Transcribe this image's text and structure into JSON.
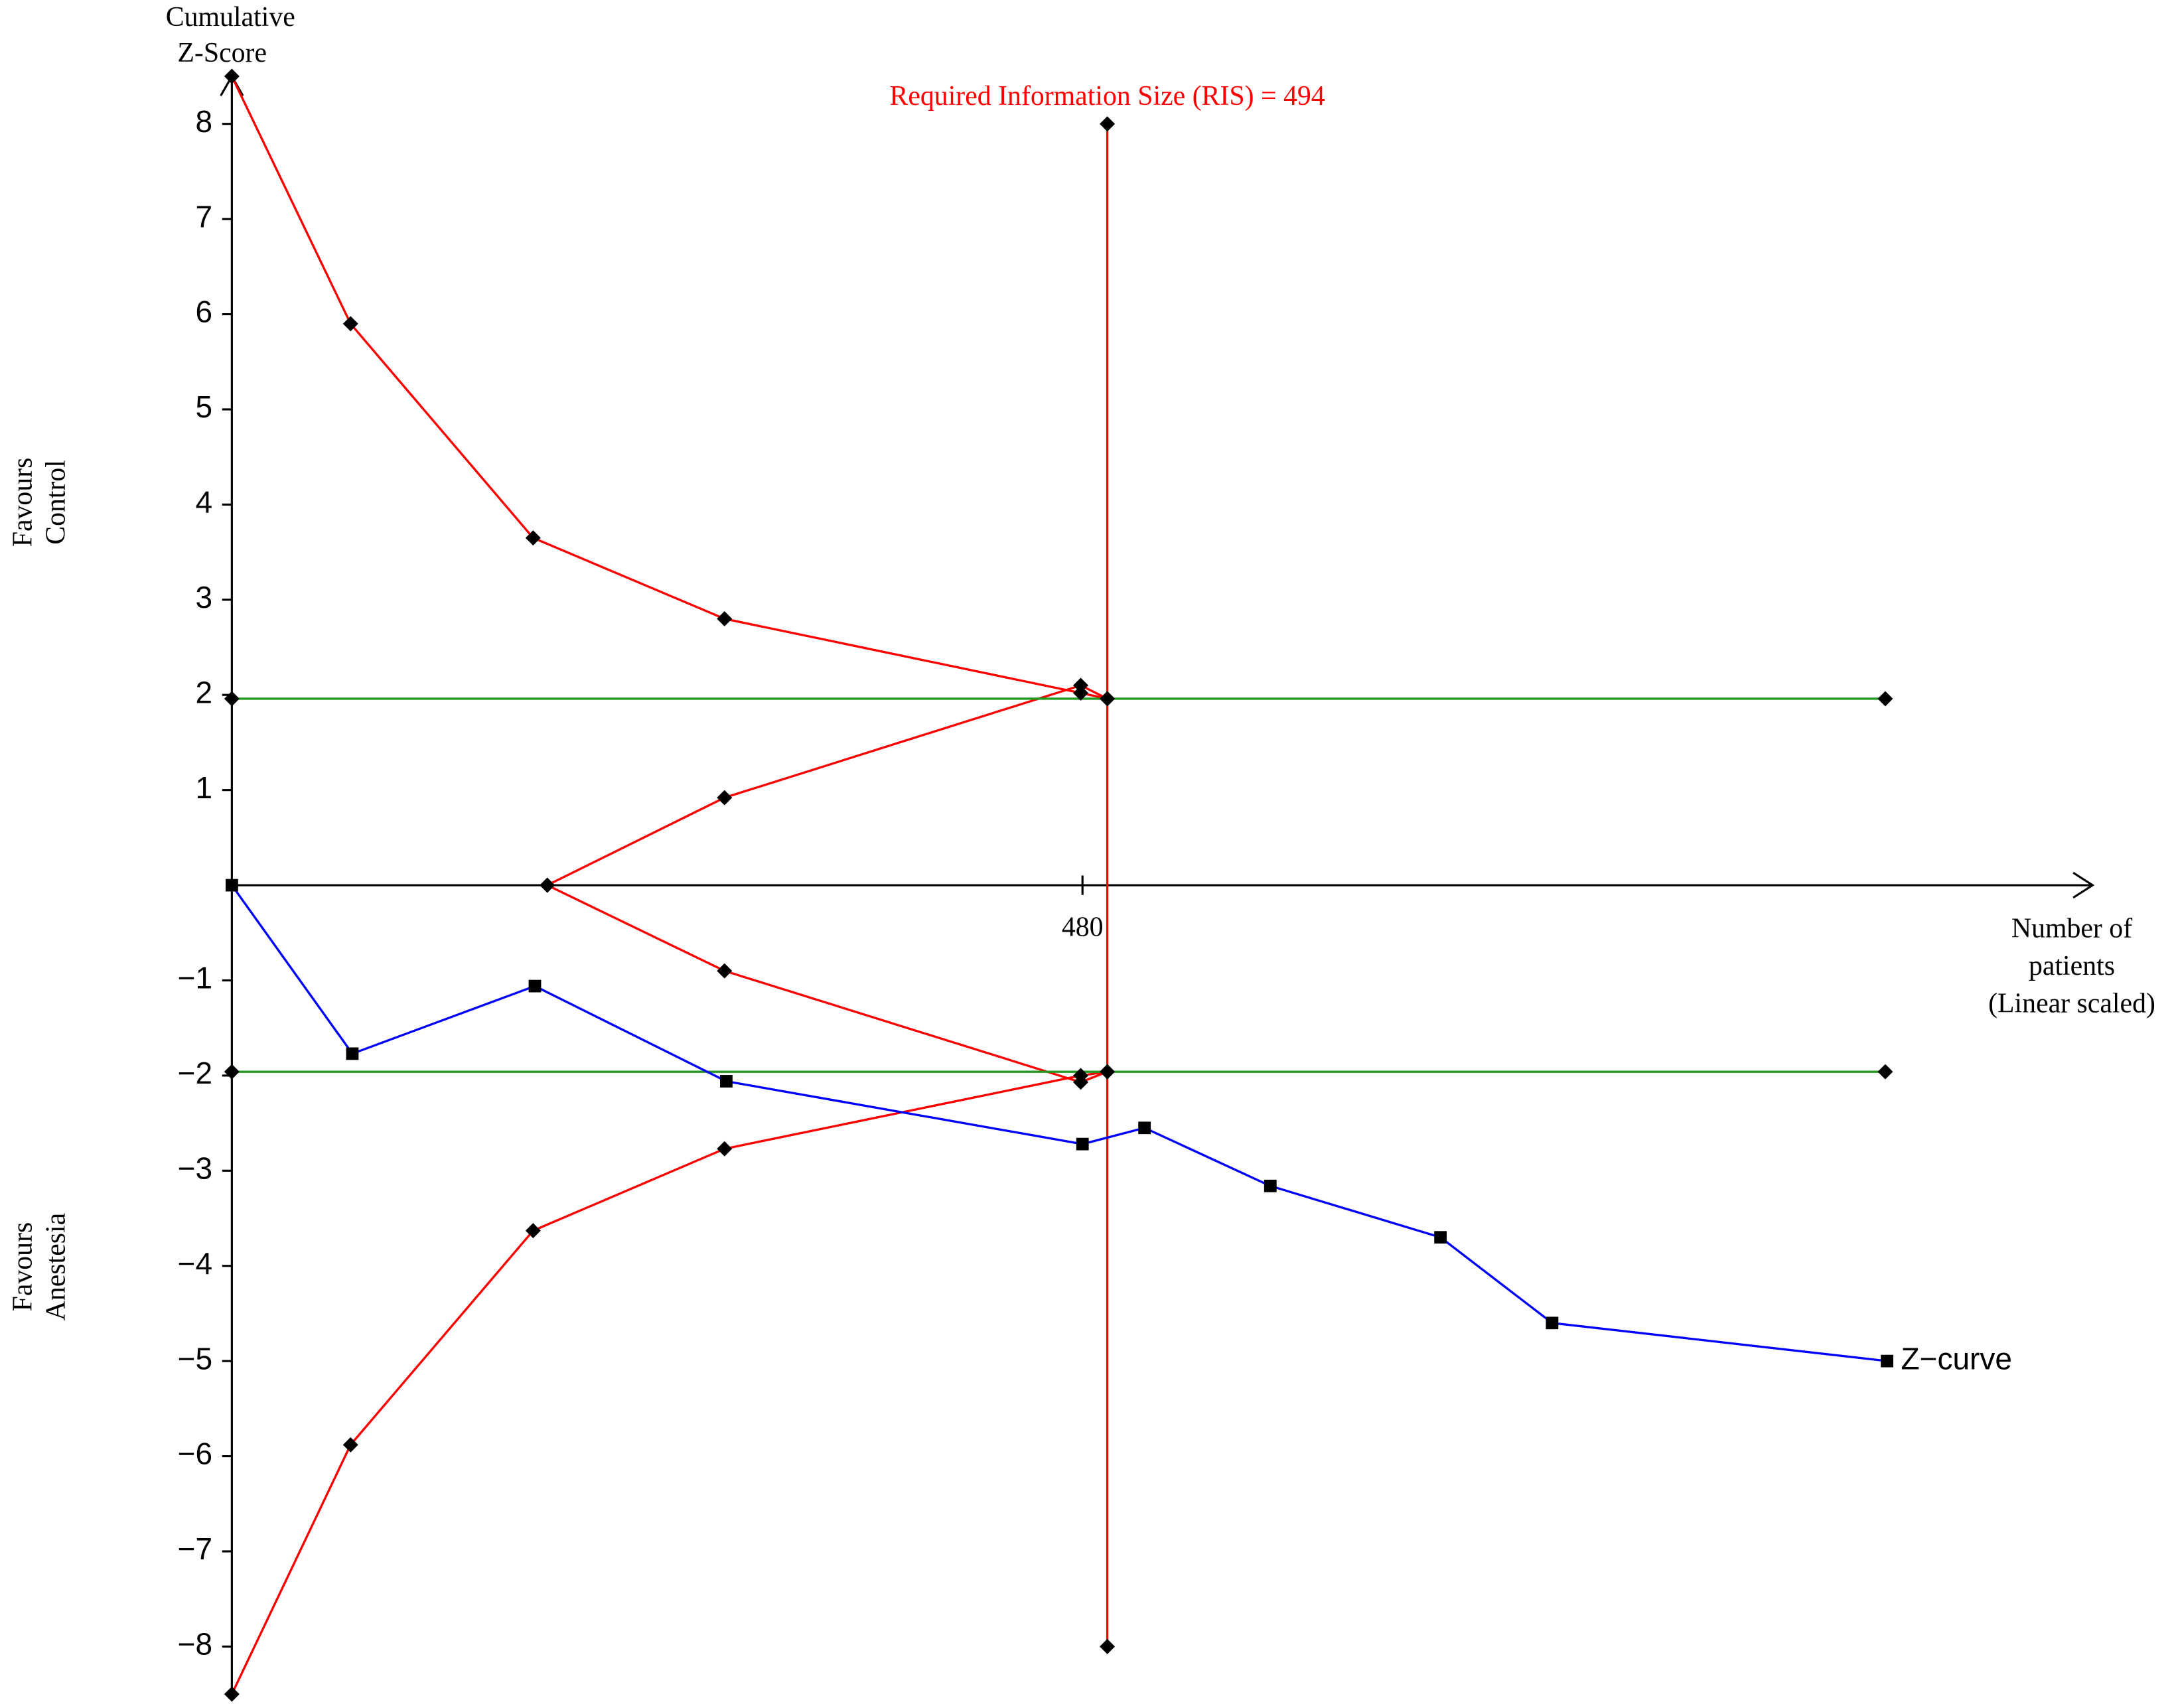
{
  "chart_data": {
    "type": "line",
    "y_label": [
      "Cumulative",
      "Z-Score"
    ],
    "x_label": [
      "Number of",
      "patients",
      "(Linear scaled)"
    ],
    "upper_side_label": [
      "Favours",
      "Control"
    ],
    "lower_side_label": [
      "Favours",
      "Anestesia"
    ],
    "annotation": "Required Information Size (RIS) = 494",
    "xlim": [
      0,
      1050
    ],
    "ylim": [
      -8.5,
      8.5
    ],
    "xticks": [
      480
    ],
    "yticks": [
      {
        "value": -8,
        "label": "−8"
      },
      {
        "value": -7,
        "label": "−7"
      },
      {
        "value": -6,
        "label": "−6"
      },
      {
        "value": -5,
        "label": "−5"
      },
      {
        "value": -4,
        "label": "−4"
      },
      {
        "value": -3,
        "label": "−3"
      },
      {
        "value": -2,
        "label": "−2"
      },
      {
        "value": -1,
        "label": "−1"
      },
      1,
      2,
      3,
      4,
      5,
      6,
      7,
      8
    ],
    "series": [
      {
        "color": "#ff0000",
        "marker": "diamond",
        "x": [
          0,
          67,
          170,
          278,
          479,
          494
        ],
        "values": [
          8.5,
          5.9,
          3.65,
          2.8,
          2.02,
          1.96
        ]
      },
      {
        "color": "#ff0000",
        "marker": "diamond",
        "x": [
          178,
          278,
          479,
          494
        ],
        "values": [
          0,
          0.92,
          2.1,
          1.96
        ]
      },
      {
        "color": "#ff0000",
        "marker": "diamond",
        "x": [
          178,
          278,
          479,
          494
        ],
        "values": [
          0,
          -0.9,
          -2.07,
          -1.96
        ]
      },
      {
        "color": "#ff0000",
        "marker": "diamond",
        "x": [
          0,
          67,
          170,
          278,
          479,
          494
        ],
        "values": [
          -8.5,
          -5.88,
          -3.63,
          -2.77,
          -2.0,
          -1.96
        ]
      },
      {
        "color": "#1f9a1f",
        "marker": "diamond",
        "x": [
          0,
          933
        ],
        "values": [
          1.96,
          1.96
        ]
      },
      {
        "color": "#1f9a1f",
        "marker": "diamond",
        "x": [
          0,
          933
        ],
        "values": [
          -1.96,
          -1.96
        ]
      },
      {
        "color": "#ff0000",
        "marker": "diamond",
        "x": [
          494,
          494
        ],
        "values": [
          8,
          -8
        ]
      },
      {
        "name": "Z−curve",
        "color": "#0000ff",
        "marker": "square",
        "x": [
          0,
          68,
          171,
          279,
          480,
          515,
          586,
          682,
          745,
          934
        ],
        "values": [
          0,
          -1.77,
          -1.06,
          -2.06,
          -2.72,
          -2.55,
          -3.16,
          -3.7,
          -4.6,
          -5.0
        ]
      }
    ]
  }
}
